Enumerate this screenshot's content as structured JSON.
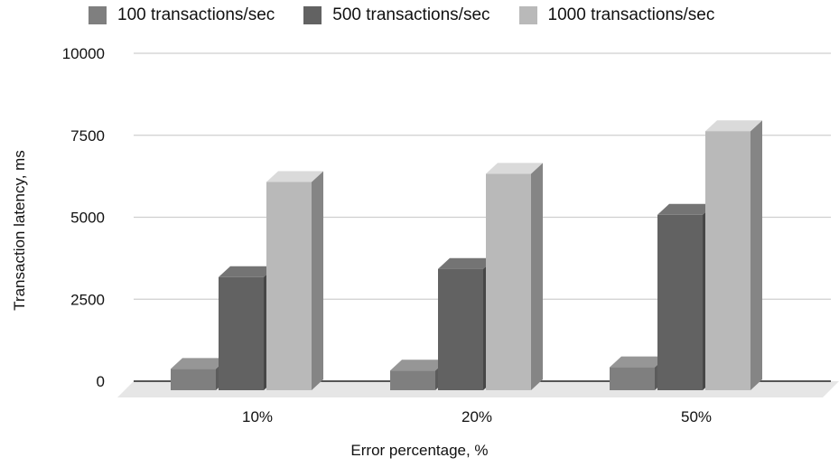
{
  "chart_data": {
    "type": "bar",
    "style": "3d",
    "categories": [
      "10%",
      "20%",
      "50%"
    ],
    "series": [
      {
        "name": "100 transactions/sec",
        "values": [
          650,
          600,
          700
        ],
        "color": "#7f7f7f"
      },
      {
        "name": "500 transactions/sec",
        "values": [
          3450,
          3700,
          5350
        ],
        "color": "#626262"
      },
      {
        "name": "1000 transactions/sec",
        "values": [
          6350,
          6600,
          7900
        ],
        "color": "#b9b9b9"
      }
    ],
    "title": "",
    "xlabel": "Error percentage, %",
    "ylabel": "Transaction latency, ms",
    "ylim": [
      0,
      10000
    ],
    "yticks": [
      "0",
      "2500",
      "5000",
      "7500",
      "10000"
    ],
    "ytick_values": [
      0,
      2500,
      5000,
      7500,
      10000
    ],
    "grid": true,
    "legend_position": "top"
  }
}
